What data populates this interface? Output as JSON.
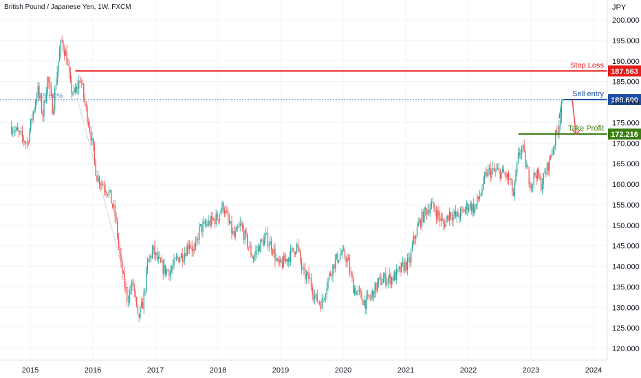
{
  "chart_data": {
    "type": "candlestick",
    "title": "British Pound / Japanese Yen, 1W, FXCM",
    "currency": "JPY",
    "x_ticks": [
      "2015",
      "2016",
      "2017",
      "2018",
      "2019",
      "2020",
      "2021",
      "2022",
      "2023",
      "2024"
    ],
    "y_ticks": [
      "120.000",
      "125.000",
      "130.000",
      "135.000",
      "140.000",
      "145.000",
      "150.000",
      "155.000",
      "160.000",
      "165.000",
      "170.000",
      "175.000",
      "180.000",
      "185.000",
      "190.000",
      "195.000",
      "200.000"
    ],
    "ylim": [
      117,
      203
    ],
    "fib_label": "78.60%",
    "levels": [
      {
        "name": "Stop Loss",
        "label": "Stop Loss",
        "value": 187.563,
        "value_text": "187.563",
        "color": "#e51a1a"
      },
      {
        "name": "Sell entry",
        "label": "Sell entry",
        "value": 180.6,
        "value_text": "180.600",
        "color": "#1c4fa3"
      },
      {
        "name": "Take Profit",
        "label": "Take Profit",
        "value": 172.216,
        "value_text": "172.216",
        "color": "#3a7d12"
      }
    ],
    "price_path": [
      [
        2014.7,
        174.0
      ],
      [
        2014.95,
        170.0
      ],
      [
        2015.05,
        178.0
      ],
      [
        2015.12,
        183.0
      ],
      [
        2015.2,
        177.0
      ],
      [
        2015.28,
        186.0
      ],
      [
        2015.36,
        178.0
      ],
      [
        2015.44,
        189.0
      ],
      [
        2015.5,
        195.0
      ],
      [
        2015.58,
        191.0
      ],
      [
        2015.65,
        183.0
      ],
      [
        2015.72,
        182.0
      ],
      [
        2015.8,
        186.0
      ],
      [
        2015.88,
        179.0
      ],
      [
        2015.96,
        173.0
      ],
      [
        2016.06,
        162.0
      ],
      [
        2016.16,
        160.0
      ],
      [
        2016.26,
        158.0
      ],
      [
        2016.36,
        152.0
      ],
      [
        2016.45,
        140.0
      ],
      [
        2016.55,
        132.0
      ],
      [
        2016.64,
        136.0
      ],
      [
        2016.72,
        127.0
      ],
      [
        2016.8,
        131.0
      ],
      [
        2016.88,
        141.0
      ],
      [
        2016.96,
        144.0
      ],
      [
        2017.05,
        141.0
      ],
      [
        2017.15,
        139.0
      ],
      [
        2017.25,
        139.0
      ],
      [
        2017.35,
        142.0
      ],
      [
        2017.45,
        143.0
      ],
      [
        2017.55,
        146.0
      ],
      [
        2017.62,
        143.0
      ],
      [
        2017.7,
        149.0
      ],
      [
        2017.8,
        150.0
      ],
      [
        2017.9,
        151.0
      ],
      [
        2018.0,
        152.0
      ],
      [
        2018.08,
        155.0
      ],
      [
        2018.16,
        151.0
      ],
      [
        2018.26,
        147.0
      ],
      [
        2018.36,
        150.0
      ],
      [
        2018.46,
        146.0
      ],
      [
        2018.56,
        142.0
      ],
      [
        2018.66,
        145.0
      ],
      [
        2018.76,
        147.0
      ],
      [
        2018.86,
        145.0
      ],
      [
        2018.96,
        140.0
      ],
      [
        2019.05,
        141.0
      ],
      [
        2019.16,
        143.0
      ],
      [
        2019.26,
        145.0
      ],
      [
        2019.36,
        138.0
      ],
      [
        2019.46,
        137.0
      ],
      [
        2019.56,
        132.0
      ],
      [
        2019.66,
        131.0
      ],
      [
        2019.76,
        137.0
      ],
      [
        2019.86,
        141.0
      ],
      [
        2019.96,
        143.0
      ],
      [
        2020.06,
        142.0
      ],
      [
        2020.16,
        135.0
      ],
      [
        2020.26,
        133.0
      ],
      [
        2020.36,
        131.0
      ],
      [
        2020.46,
        133.0
      ],
      [
        2020.56,
        136.0
      ],
      [
        2020.66,
        137.0
      ],
      [
        2020.76,
        137.0
      ],
      [
        2020.86,
        138.0
      ],
      [
        2020.96,
        140.0
      ],
      [
        2021.06,
        141.0
      ],
      [
        2021.12,
        146.0
      ],
      [
        2021.2,
        150.0
      ],
      [
        2021.3,
        153.0
      ],
      [
        2021.4,
        155.0
      ],
      [
        2021.5,
        153.0
      ],
      [
        2021.6,
        150.0
      ],
      [
        2021.7,
        153.0
      ],
      [
        2021.8,
        152.0
      ],
      [
        2021.9,
        153.0
      ],
      [
        2022.0,
        155.0
      ],
      [
        2022.1,
        154.0
      ],
      [
        2022.2,
        158.0
      ],
      [
        2022.3,
        163.0
      ],
      [
        2022.4,
        163.0
      ],
      [
        2022.5,
        163.0
      ],
      [
        2022.6,
        162.0
      ],
      [
        2022.66,
        161.0
      ],
      [
        2022.72,
        157.0
      ],
      [
        2022.8,
        167.0
      ],
      [
        2022.86,
        169.0
      ],
      [
        2022.94,
        163.0
      ],
      [
        2023.0,
        160.0
      ],
      [
        2023.08,
        163.0
      ],
      [
        2023.16,
        160.0
      ],
      [
        2023.24,
        163.0
      ],
      [
        2023.32,
        167.0
      ],
      [
        2023.4,
        172.0
      ],
      [
        2023.45,
        175.0
      ],
      [
        2023.5,
        181.0
      ]
    ],
    "trade_arrow": {
      "from": [
        2023.66,
        180.6
      ],
      "to": [
        2023.72,
        172.216
      ],
      "color": "#e05050"
    }
  },
  "colors": {
    "up": "#26a69a",
    "down": "#ef5350",
    "grid": "#f0f3fa",
    "axis_text": "#131722",
    "fib_line": "#5b8fd1"
  }
}
